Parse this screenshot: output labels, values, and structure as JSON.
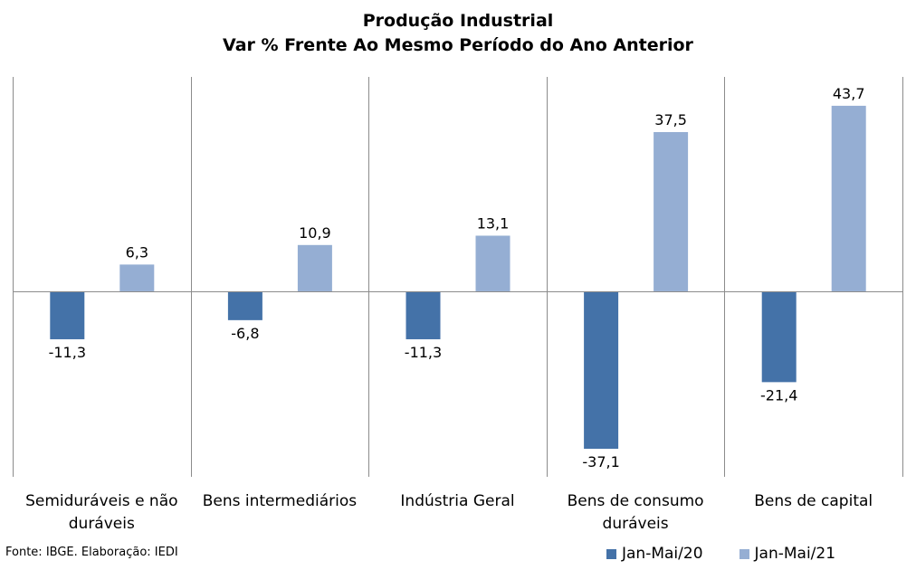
{
  "chart_data": {
    "type": "bar",
    "title": "Produção Industrial",
    "subtitle": "Var % Frente Ao Mesmo Período do Ano Anterior",
    "categories": [
      [
        "Semiduráveis e não",
        "duráveis"
      ],
      [
        "Bens intermediários"
      ],
      [
        "Indústria Geral"
      ],
      [
        "Bens de consumo",
        "duráveis"
      ],
      [
        "Bens de capital"
      ]
    ],
    "series": [
      {
        "name": "Jan-Mai/20",
        "color": "#4472a8",
        "values": [
          -11.3,
          -6.8,
          -11.3,
          -37.1,
          -21.4
        ]
      },
      {
        "name": "Jan-Mai/21",
        "color": "#95aed3",
        "values": [
          6.3,
          10.9,
          13.1,
          37.5,
          43.7
        ]
      }
    ],
    "value_labels": [
      [
        "-11,3",
        "-6,8",
        "-11,3",
        "-37,1",
        "-21,4"
      ],
      [
        "6,3",
        "10,9",
        "13,1",
        "37,5",
        "43,7"
      ]
    ],
    "ylim": [
      -43.7,
      50.5
    ],
    "grid": false,
    "legend_position": "bottom-right"
  },
  "footer": {
    "source": "Fonte: IBGE. Elaboração: IEDI"
  }
}
